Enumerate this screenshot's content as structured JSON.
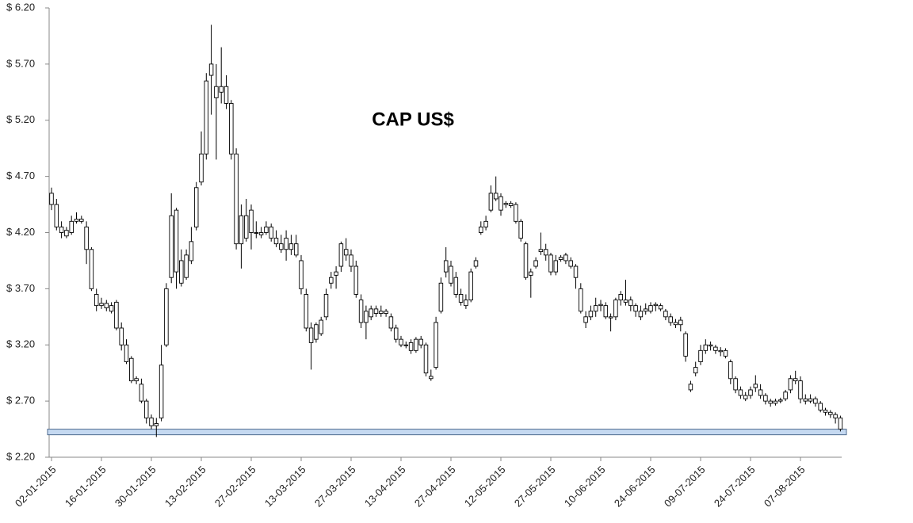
{
  "chart_data": {
    "type": "candlestick",
    "title": "CAP US$",
    "categories": [
      "02-01-2015",
      null,
      null,
      null,
      null,
      null,
      null,
      null,
      null,
      null,
      "16-01-2015",
      null,
      null,
      null,
      null,
      null,
      null,
      null,
      null,
      null,
      "30-01-2015",
      null,
      null,
      null,
      null,
      null,
      null,
      null,
      null,
      null,
      "13-02-2015",
      null,
      null,
      null,
      null,
      null,
      null,
      null,
      null,
      null,
      "27-02-2015",
      null,
      null,
      null,
      null,
      null,
      null,
      null,
      null,
      null,
      "13-03-2015",
      null,
      null,
      null,
      null,
      null,
      null,
      null,
      null,
      null,
      "27-03-2015",
      null,
      null,
      null,
      null,
      null,
      null,
      null,
      null,
      null,
      "13-04-2015",
      null,
      null,
      null,
      null,
      null,
      null,
      null,
      null,
      null,
      "27-04-2015",
      null,
      null,
      null,
      null,
      null,
      null,
      null,
      null,
      null,
      "12-05-2015",
      null,
      null,
      null,
      null,
      null,
      null,
      null,
      null,
      null,
      "27-05-2015",
      null,
      null,
      null,
      null,
      null,
      null,
      null,
      null,
      null,
      "10-06-2015",
      null,
      null,
      null,
      null,
      null,
      null,
      null,
      null,
      null,
      "24-06-2015",
      null,
      null,
      null,
      null,
      null,
      null,
      null,
      null,
      null,
      "09-07-2015",
      null,
      null,
      null,
      null,
      null,
      null,
      null,
      null,
      null,
      "24-07-2015",
      null,
      null,
      null,
      null,
      null,
      null,
      null,
      null,
      null,
      "07-08-2015",
      null,
      null,
      null,
      null,
      null,
      null,
      null,
      null
    ],
    "open": [
      4.45,
      4.45,
      4.25,
      4.17,
      4.2,
      4.3,
      4.32,
      4.25,
      4.05,
      3.65,
      3.55,
      3.57,
      3.5,
      3.58,
      3.35,
      3.2,
      3.08,
      2.9,
      2.85,
      2.7,
      2.55,
      2.5,
      2.55,
      3.2,
      3.8,
      4.4,
      3.75,
      3.8,
      3.95,
      4.25,
      4.65,
      4.9,
      5.6,
      5.5,
      5.5,
      5.5,
      5.35,
      4.9,
      4.1,
      4.35,
      4.4,
      4.2,
      4.18,
      4.2,
      4.25,
      4.15,
      4.1,
      4.15,
      4.1,
      4.1,
      3.95,
      3.65,
      3.35,
      3.25,
      3.3,
      3.45,
      3.75,
      3.82,
      3.9,
      4.05,
      4.0,
      3.9,
      3.6,
      3.4,
      3.45,
      3.52,
      3.48,
      3.5,
      3.45,
      3.35,
      3.25,
      3.2,
      3.22,
      3.15,
      3.25,
      3.2,
      2.92,
      3.0,
      3.5,
      3.85,
      3.9,
      3.8,
      3.65,
      3.6,
      3.6,
      3.9,
      4.2,
      4.25,
      4.4,
      4.55,
      4.52,
      4.45,
      4.46,
      4.45,
      4.3,
      4.1,
      3.85,
      3.9,
      4.05,
      4.05,
      4.0,
      3.95,
      3.98,
      4.0,
      3.95,
      3.9,
      3.7,
      3.45,
      3.45,
      3.55,
      3.55,
      3.55,
      3.45,
      3.45,
      3.6,
      3.6,
      3.6,
      3.55,
      3.5,
      3.5,
      3.55,
      3.55,
      3.55,
      3.5,
      3.45,
      3.4,
      3.42,
      3.3,
      2.85,
      2.95,
      3.05,
      3.15,
      3.2,
      3.18,
      3.15,
      3.15,
      3.05,
      2.9,
      2.8,
      2.75,
      2.75,
      2.85,
      2.8,
      2.75,
      2.7,
      2.68,
      2.7,
      2.72,
      2.8,
      2.9,
      2.88,
      2.72,
      2.7,
      2.72,
      2.68,
      2.62,
      2.6,
      2.58,
      2.55
    ],
    "high": [
      4.6,
      4.5,
      4.3,
      4.25,
      4.35,
      4.38,
      4.35,
      4.3,
      4.07,
      3.7,
      3.62,
      3.6,
      3.58,
      3.6,
      3.4,
      3.25,
      3.1,
      2.92,
      2.9,
      2.72,
      2.58,
      2.55,
      3.2,
      3.75,
      4.55,
      4.42,
      4.05,
      4.05,
      4.25,
      4.65,
      5.1,
      5.62,
      6.05,
      5.7,
      5.85,
      5.6,
      5.38,
      4.95,
      4.45,
      4.5,
      4.45,
      4.3,
      4.25,
      4.3,
      4.28,
      4.22,
      4.18,
      4.22,
      4.18,
      4.18,
      4.0,
      3.7,
      3.4,
      3.4,
      3.45,
      3.7,
      3.85,
      3.9,
      4.12,
      4.15,
      4.05,
      3.95,
      3.65,
      3.55,
      3.55,
      3.55,
      3.55,
      3.52,
      3.48,
      3.38,
      3.28,
      3.23,
      3.25,
      3.27,
      3.28,
      3.22,
      2.98,
      3.45,
      3.8,
      4.07,
      3.95,
      3.85,
      3.7,
      3.65,
      3.88,
      3.98,
      4.3,
      4.35,
      4.62,
      4.7,
      4.55,
      4.48,
      4.48,
      4.47,
      4.32,
      4.12,
      3.88,
      3.98,
      4.2,
      4.1,
      4.02,
      4.0,
      4.0,
      4.02,
      3.98,
      3.92,
      3.75,
      3.5,
      3.55,
      3.62,
      3.6,
      3.58,
      3.48,
      3.62,
      3.68,
      3.78,
      3.63,
      3.57,
      3.55,
      3.57,
      3.58,
      3.58,
      3.57,
      3.52,
      3.48,
      3.43,
      3.45,
      3.32,
      2.88,
      3.05,
      3.2,
      3.25,
      3.23,
      3.2,
      3.18,
      3.17,
      3.07,
      2.92,
      2.83,
      2.78,
      2.83,
      2.93,
      2.85,
      2.77,
      2.72,
      2.72,
      2.73,
      2.8,
      2.93,
      2.97,
      2.92,
      2.76,
      2.76,
      2.74,
      2.7,
      2.64,
      2.62,
      2.6,
      2.57
    ],
    "low": [
      4.4,
      4.22,
      4.15,
      4.15,
      4.18,
      4.28,
      4.28,
      3.92,
      3.68,
      3.5,
      3.52,
      3.5,
      3.48,
      3.33,
      3.15,
      3.03,
      2.86,
      2.85,
      2.68,
      2.5,
      2.45,
      2.38,
      2.52,
      3.18,
      3.75,
      3.7,
      3.72,
      3.78,
      3.92,
      4.22,
      4.62,
      4.85,
      5.25,
      4.85,
      5.35,
      5.3,
      4.85,
      4.05,
      3.88,
      4.12,
      4.05,
      4.15,
      4.15,
      4.18,
      4.12,
      4.07,
      4.02,
      3.95,
      4.0,
      3.98,
      3.65,
      3.32,
      2.98,
      3.22,
      3.28,
      3.42,
      3.7,
      3.7,
      3.85,
      3.95,
      3.85,
      3.62,
      3.35,
      3.25,
      3.42,
      3.45,
      3.45,
      3.45,
      3.32,
      3.22,
      3.18,
      3.17,
      3.12,
      3.13,
      3.17,
      2.92,
      2.88,
      2.98,
      3.48,
      3.8,
      3.72,
      3.62,
      3.55,
      3.52,
      3.58,
      3.88,
      4.18,
      4.22,
      4.38,
      4.48,
      4.35,
      4.42,
      4.42,
      4.28,
      4.12,
      3.78,
      3.62,
      3.88,
      4.0,
      3.95,
      3.82,
      3.82,
      3.94,
      3.92,
      3.88,
      3.7,
      3.48,
      3.35,
      3.42,
      3.45,
      3.5,
      3.43,
      3.32,
      3.42,
      3.55,
      3.55,
      3.5,
      3.45,
      3.42,
      3.47,
      3.48,
      3.5,
      3.5,
      3.42,
      3.37,
      3.35,
      3.32,
      3.05,
      2.78,
      2.92,
      3.02,
      3.12,
      3.15,
      3.12,
      3.1,
      3.08,
      2.85,
      2.77,
      2.72,
      2.7,
      2.72,
      2.78,
      2.72,
      2.67,
      2.65,
      2.66,
      2.68,
      2.7,
      2.77,
      2.85,
      2.68,
      2.67,
      2.68,
      2.65,
      2.6,
      2.57,
      2.55,
      2.5,
      2.43
    ],
    "close": [
      4.55,
      4.25,
      4.2,
      4.22,
      4.3,
      4.32,
      4.3,
      4.05,
      3.7,
      3.55,
      3.57,
      3.53,
      3.55,
      3.35,
      3.2,
      3.05,
      2.88,
      2.88,
      2.7,
      2.55,
      2.48,
      2.48,
      3.02,
      3.7,
      4.35,
      3.85,
      3.95,
      4.0,
      4.12,
      4.6,
      4.9,
      5.55,
      5.7,
      5.4,
      5.45,
      5.35,
      4.9,
      4.1,
      4.35,
      4.15,
      4.2,
      4.2,
      4.2,
      4.25,
      4.15,
      4.1,
      4.05,
      4.05,
      4.05,
      4.0,
      3.7,
      3.35,
      3.22,
      3.38,
      3.42,
      3.65,
      3.8,
      3.85,
      4.1,
      4.0,
      3.9,
      3.65,
      3.4,
      3.5,
      3.52,
      3.48,
      3.5,
      3.48,
      3.35,
      3.25,
      3.2,
      3.2,
      3.15,
      3.25,
      3.2,
      2.95,
      2.9,
      3.4,
      3.75,
      3.95,
      3.75,
      3.65,
      3.58,
      3.55,
      3.85,
      3.95,
      4.25,
      4.3,
      4.55,
      4.5,
      4.4,
      4.46,
      4.44,
      4.3,
      4.15,
      3.8,
      3.82,
      3.95,
      4.03,
      4.0,
      3.85,
      3.85,
      3.96,
      3.95,
      3.9,
      3.8,
      3.5,
      3.4,
      3.5,
      3.5,
      3.56,
      3.45,
      3.44,
      3.6,
      3.65,
      3.58,
      3.55,
      3.5,
      3.45,
      3.52,
      3.5,
      3.56,
      3.52,
      3.45,
      3.4,
      3.38,
      3.38,
      3.1,
      2.8,
      3.0,
      3.15,
      3.2,
      3.19,
      3.15,
      3.14,
      3.1,
      2.9,
      2.8,
      2.75,
      2.72,
      2.8,
      2.82,
      2.75,
      2.7,
      2.68,
      2.7,
      2.71,
      2.78,
      2.9,
      2.88,
      2.72,
      2.7,
      2.72,
      2.68,
      2.62,
      2.6,
      2.58,
      2.55,
      2.45
    ],
    "band": [
      2.4,
      2.45
    ],
    "band_color": "#c5d9f1",
    "ylim": [
      2.2,
      6.2
    ],
    "yticks": [
      {
        "value": 2.2,
        "label": "$ 2.20"
      },
      {
        "value": 2.7,
        "label": "$ 2.70"
      },
      {
        "value": 3.2,
        "label": "$ 3.20"
      },
      {
        "value": 3.7,
        "label": "$ 3.70"
      },
      {
        "value": 4.2,
        "label": "$ 4.20"
      },
      {
        "value": 4.7,
        "label": "$ 4.70"
      },
      {
        "value": 5.2,
        "label": "$ 5.20"
      },
      {
        "value": 5.7,
        "label": "$ 5.70"
      },
      {
        "value": 6.2,
        "label": "$ 6.20"
      }
    ],
    "grid": false,
    "color": "#ffffff"
  }
}
